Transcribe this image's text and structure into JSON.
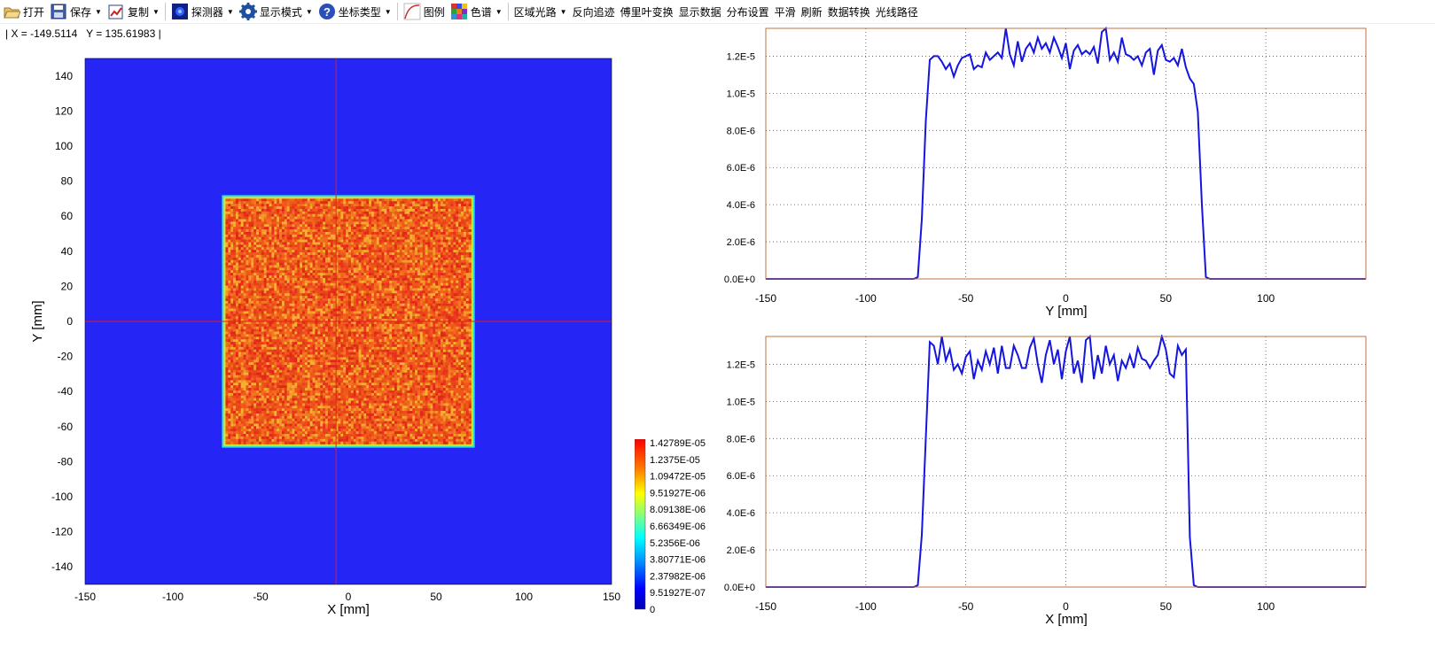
{
  "toolbar": {
    "items": [
      {
        "label": "打开",
        "icon": "folder-open-icon",
        "dropdown": false
      },
      {
        "label": "保存",
        "icon": "save-icon",
        "dropdown": true
      },
      {
        "label": "复制",
        "icon": "copy-chart-icon",
        "dropdown": true
      },
      {
        "label": "探测器",
        "icon": "detector-icon",
        "dropdown": true
      },
      {
        "label": "显示模式",
        "icon": "gear-icon",
        "dropdown": true
      },
      {
        "label": "坐标类型",
        "icon": "help-icon",
        "dropdown": true
      },
      {
        "label": "图例",
        "icon": "legend-curve-icon",
        "dropdown": false
      },
      {
        "label": "色谱",
        "icon": "color-grid-icon",
        "dropdown": true
      },
      {
        "label": "区域光路",
        "icon": "",
        "dropdown": true
      },
      {
        "label": "反向追迹",
        "icon": "",
        "dropdown": false
      },
      {
        "label": "傅里叶变换",
        "icon": "",
        "dropdown": false
      },
      {
        "label": "显示数据",
        "icon": "",
        "dropdown": false
      },
      {
        "label": "分布设置",
        "icon": "",
        "dropdown": false
      },
      {
        "label": "平滑",
        "icon": "",
        "dropdown": false
      },
      {
        "label": "刷新",
        "icon": "",
        "dropdown": false
      },
      {
        "label": "数据转换",
        "icon": "",
        "dropdown": false
      },
      {
        "label": "光线路径",
        "icon": "",
        "dropdown": false
      }
    ]
  },
  "status": {
    "coord_text": "| X = -149.5114   Y = 135.61983 |"
  },
  "colors": {
    "background_blue": "#2525f5",
    "crosshair": "#e31e1e",
    "profile_line": "#1515e0",
    "plot_border": "#c07040"
  },
  "chart_data": [
    {
      "type": "heatmap",
      "title": "",
      "xlabel": "X [mm]",
      "ylabel": "Y [mm]",
      "xlim": [
        -150,
        150
      ],
      "ylim": [
        -150,
        150
      ],
      "x_ticks": [
        -150,
        -100,
        -50,
        0,
        50,
        100,
        150
      ],
      "y_ticks": [
        140,
        120,
        100,
        80,
        60,
        40,
        20,
        0,
        -20,
        -40,
        -60,
        -80,
        -100,
        -120,
        -140
      ],
      "illuminated_region": {
        "x": [
          -70,
          70
        ],
        "y": [
          -70,
          70
        ]
      },
      "crosshair": {
        "x": -7,
        "y": 0
      },
      "colorbar": {
        "labels": [
          "1.42789E-05",
          "1.2375E-05",
          "1.09472E-05",
          "9.51927E-06",
          "8.09138E-06",
          "6.66349E-06",
          "5.2356E-06",
          "3.80771E-06",
          "2.37982E-06",
          "9.51927E-07",
          "0"
        ],
        "min": 0,
        "max": 1.42789e-05
      }
    },
    {
      "type": "line",
      "title": "",
      "xlabel": "Y [mm]",
      "ylabel": "",
      "xlim": [
        -150,
        150
      ],
      "ylim": [
        0,
        1.35e-05
      ],
      "x_ticks": [
        -150,
        -100,
        -50,
        0,
        50,
        100
      ],
      "y_ticks": [
        "0.0E+0",
        "2.0E-6",
        "4.0E-6",
        "6.0E-6",
        "8.0E-6",
        "1.0E-5",
        "1.2E-5"
      ],
      "y_tick_values": [
        0,
        2e-06,
        4e-06,
        6e-06,
        8e-06,
        1e-05,
        1.2e-05
      ],
      "grid": true,
      "x": [
        -150,
        -76,
        -74,
        -72,
        -70,
        -68,
        -66,
        -64,
        -62,
        -60,
        -58,
        -56,
        -54,
        -52,
        -50,
        -48,
        -46,
        -44,
        -42,
        -40,
        -38,
        -36,
        -34,
        -32,
        -30,
        -28,
        -26,
        -24,
        -22,
        -20,
        -18,
        -16,
        -14,
        -12,
        -10,
        -8,
        -6,
        -4,
        -2,
        0,
        2,
        4,
        6,
        8,
        10,
        12,
        14,
        16,
        18,
        20,
        22,
        24,
        26,
        28,
        30,
        32,
        34,
        36,
        38,
        40,
        42,
        44,
        46,
        48,
        50,
        52,
        54,
        56,
        58,
        60,
        62,
        64,
        66,
        68,
        70,
        72,
        74,
        150
      ],
      "y": [
        0,
        0,
        1e-07,
        3.2e-06,
        8.5e-06,
        1.18e-05,
        1.2e-05,
        1.2e-05,
        1.17e-05,
        1.13e-05,
        1.16e-05,
        1.09e-05,
        1.15e-05,
        1.19e-05,
        1.2e-05,
        1.21e-05,
        1.13e-05,
        1.15e-05,
        1.14e-05,
        1.22e-05,
        1.18e-05,
        1.2e-05,
        1.22e-05,
        1.19e-05,
        1.35e-05,
        1.21e-05,
        1.15e-05,
        1.28e-05,
        1.17e-05,
        1.24e-05,
        1.27e-05,
        1.22e-05,
        1.3e-05,
        1.24e-05,
        1.27e-05,
        1.22e-05,
        1.3e-05,
        1.25e-05,
        1.19e-05,
        1.27e-05,
        1.13e-05,
        1.23e-05,
        1.26e-05,
        1.21e-05,
        1.23e-05,
        1.21e-05,
        1.25e-05,
        1.16e-05,
        1.33e-05,
        1.35e-05,
        1.18e-05,
        1.22e-05,
        1.17e-05,
        1.3e-05,
        1.21e-05,
        1.2e-05,
        1.18e-05,
        1.2e-05,
        1.15e-05,
        1.22e-05,
        1.24e-05,
        1.1e-05,
        1.23e-05,
        1.26e-05,
        1.18e-05,
        1.17e-05,
        1.19e-05,
        1.15e-05,
        1.24e-05,
        1.14e-05,
        1.08e-05,
        1.05e-05,
        9e-06,
        4e-06,
        1e-07,
        0,
        0,
        0
      ]
    },
    {
      "type": "line",
      "title": "",
      "xlabel": "X [mm]",
      "ylabel": "",
      "xlim": [
        -150,
        150
      ],
      "ylim": [
        0,
        1.35e-05
      ],
      "x_ticks": [
        -150,
        -100,
        -50,
        0,
        50,
        100
      ],
      "y_ticks": [
        "0.0E+0",
        "2.0E-6",
        "4.0E-6",
        "6.0E-6",
        "8.0E-6",
        "1.0E-5",
        "1.2E-5"
      ],
      "y_tick_values": [
        0,
        2e-06,
        4e-06,
        6e-06,
        8e-06,
        1e-05,
        1.2e-05
      ],
      "grid": true,
      "x": [
        -150,
        -76,
        -74,
        -72,
        -70,
        -68,
        -66,
        -64,
        -62,
        -60,
        -58,
        -56,
        -54,
        -52,
        -50,
        -48,
        -46,
        -44,
        -42,
        -40,
        -38,
        -36,
        -34,
        -32,
        -30,
        -28,
        -26,
        -24,
        -22,
        -20,
        -18,
        -16,
        -14,
        -12,
        -10,
        -8,
        -6,
        -4,
        -2,
        0,
        2,
        4,
        6,
        8,
        10,
        12,
        14,
        16,
        18,
        20,
        22,
        24,
        26,
        28,
        30,
        32,
        34,
        36,
        38,
        40,
        42,
        44,
        46,
        48,
        50,
        52,
        54,
        56,
        58,
        60,
        62,
        64,
        66,
        68,
        70,
        72,
        74,
        150
      ],
      "y": [
        0,
        0,
        1e-07,
        2.8e-06,
        8e-06,
        1.32e-05,
        1.3e-05,
        1.2e-05,
        1.35e-05,
        1.22e-05,
        1.28e-05,
        1.17e-05,
        1.2e-05,
        1.15e-05,
        1.24e-05,
        1.27e-05,
        1.12e-05,
        1.22e-05,
        1.17e-05,
        1.27e-05,
        1.2e-05,
        1.29e-05,
        1.15e-05,
        1.3e-05,
        1.18e-05,
        1.18e-05,
        1.3e-05,
        1.25e-05,
        1.18e-05,
        1.18e-05,
        1.29e-05,
        1.34e-05,
        1.2e-05,
        1.1e-05,
        1.25e-05,
        1.33e-05,
        1.2e-05,
        1.28e-05,
        1.12e-05,
        1.27e-05,
        1.35e-05,
        1.15e-05,
        1.22e-05,
        1.1e-05,
        1.33e-05,
        1.35e-05,
        1.12e-05,
        1.25e-05,
        1.15e-05,
        1.3e-05,
        1.2e-05,
        1.25e-05,
        1.11e-05,
        1.22e-05,
        1.18e-05,
        1.25e-05,
        1.18e-05,
        1.29e-05,
        1.23e-05,
        1.22e-05,
        1.18e-05,
        1.22e-05,
        1.25e-05,
        1.35e-05,
        1.28e-05,
        1.15e-05,
        1.13e-05,
        1.3e-05,
        1.25e-05,
        1.28e-05,
        2.7e-06,
        1e-07,
        0,
        0,
        0,
        0,
        0,
        0
      ]
    }
  ]
}
